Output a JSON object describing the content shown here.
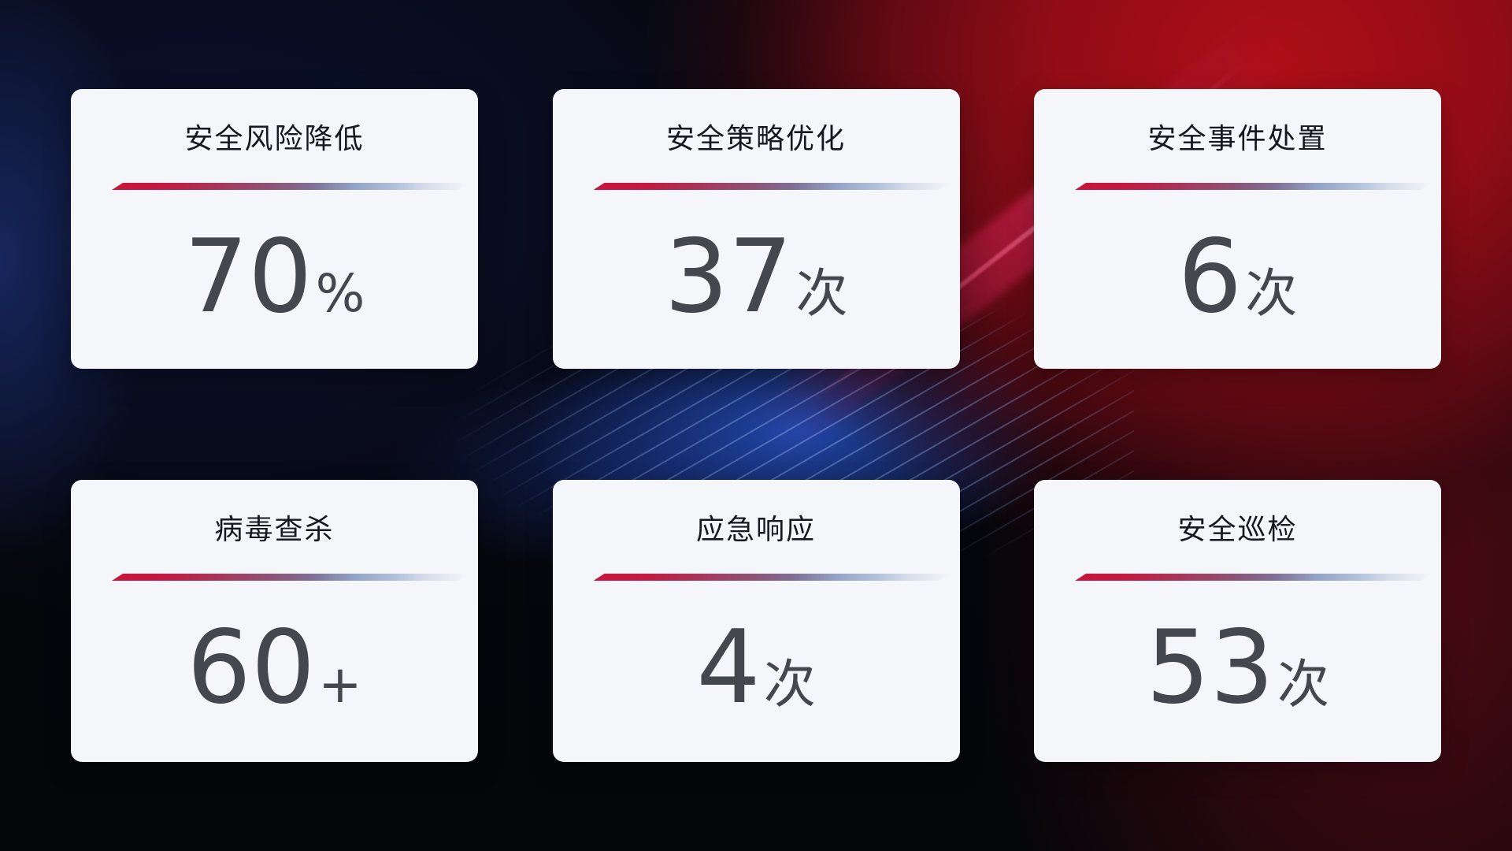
{
  "cards": [
    {
      "title": "安全风险降低",
      "value": "70",
      "unit": "%"
    },
    {
      "title": "安全策略优化",
      "value": "37",
      "unit": "次"
    },
    {
      "title": "安全事件处置",
      "value": "6",
      "unit": "次"
    },
    {
      "title": "病毒查杀",
      "value": "60",
      "unit": "+"
    },
    {
      "title": "应急响应",
      "value": "4",
      "unit": "次"
    },
    {
      "title": "安全巡检",
      "value": "53",
      "unit": "次"
    }
  ],
  "colors": {
    "card_background": "#f4f6f9",
    "title_text": "#16181d",
    "value_text": "#44474e",
    "divider_gradient_start": "#c9153c",
    "divider_gradient_middle": "#8c5377",
    "divider_gradient_end": "#b4c3dc",
    "background_base": "#05060a",
    "background_blue_glow": "#224ab2",
    "background_red_glow": "#ad0e17"
  }
}
